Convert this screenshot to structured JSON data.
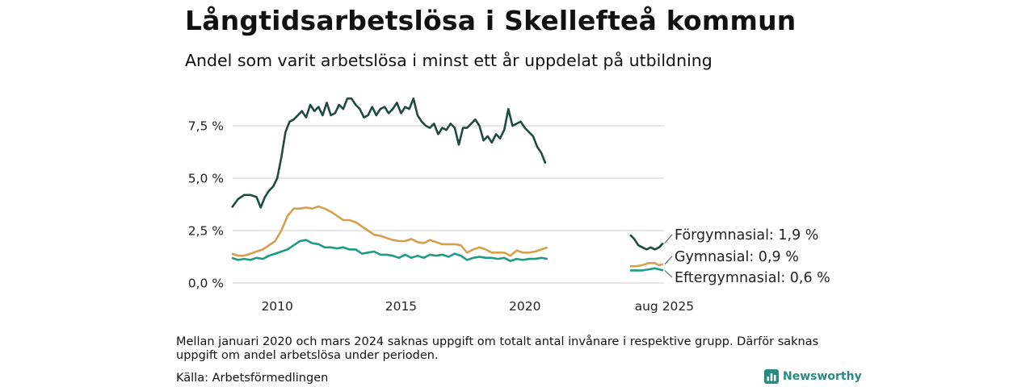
{
  "title": "Långtidsarbetslösa i Skellefteå kommun",
  "subtitle": "Andel som varit arbetslösa i minst ett år uppdelat på utbildning",
  "note": "Mellan januari 2020 och mars 2024 saknas uppgift om totalt antal invånare i respektive grupp. Därför saknas uppgift om andel arbetslösa under perioden.",
  "source": "Källa: Arbetsförmedlingen",
  "brand": "Newsworthy",
  "brand_icon": "bar-chart-icon",
  "colors": {
    "forgymnasial": "#1f4a3f",
    "gymnasial": "#d4a04c",
    "eftergymnasial": "#1d9a85",
    "grid": "#dddddd",
    "brand": "#2a8a7f"
  },
  "chart_data": {
    "type": "line",
    "title": "Långtidsarbetslösa i Skellefteå kommun",
    "subtitle": "Andel som varit arbetslösa i minst ett år uppdelat på utbildning",
    "xlabel": "",
    "ylabel": "",
    "x_ticks": [
      "2010",
      "2015",
      "2020"
    ],
    "x_end_label": "aug 2025",
    "y_ticks": [
      "0,0 %",
      "2,5 %",
      "5,0 %",
      "7,5 %"
    ],
    "ylim": [
      0,
      8.9
    ],
    "grid": true,
    "legend": "right, at series end",
    "series": [
      {
        "name": "Förgymnasial",
        "end_label": "Förgymnasial: 1,9 %",
        "color": "#1f4a3f",
        "points": [
          [
            "2008-03",
            3.6
          ],
          [
            "2008-06",
            4.0
          ],
          [
            "2008-09",
            4.2
          ],
          [
            "2008-12",
            4.2
          ],
          [
            "2009-03",
            4.1
          ],
          [
            "2009-05",
            3.6
          ],
          [
            "2009-07",
            4.1
          ],
          [
            "2009-09",
            4.4
          ],
          [
            "2009-11",
            4.6
          ],
          [
            "2010-01",
            5.0
          ],
          [
            "2010-03",
            6.0
          ],
          [
            "2010-05",
            7.2
          ],
          [
            "2010-07",
            7.7
          ],
          [
            "2010-09",
            7.8
          ],
          [
            "2010-11",
            8.0
          ],
          [
            "2011-01",
            8.2
          ],
          [
            "2011-03",
            7.9
          ],
          [
            "2011-05",
            8.5
          ],
          [
            "2011-07",
            8.2
          ],
          [
            "2011-09",
            8.4
          ],
          [
            "2011-11",
            8.0
          ],
          [
            "2012-01",
            8.6
          ],
          [
            "2012-03",
            8.0
          ],
          [
            "2012-05",
            8.1
          ],
          [
            "2012-07",
            8.5
          ],
          [
            "2012-09",
            8.3
          ],
          [
            "2012-11",
            8.8
          ],
          [
            "2013-01",
            8.8
          ],
          [
            "2013-03",
            8.5
          ],
          [
            "2013-05",
            8.3
          ],
          [
            "2013-07",
            7.9
          ],
          [
            "2013-09",
            8.0
          ],
          [
            "2013-11",
            8.4
          ],
          [
            "2014-01",
            8.0
          ],
          [
            "2014-03",
            8.3
          ],
          [
            "2014-05",
            8.4
          ],
          [
            "2014-07",
            8.1
          ],
          [
            "2014-09",
            8.3
          ],
          [
            "2014-11",
            8.6
          ],
          [
            "2015-01",
            8.1
          ],
          [
            "2015-03",
            8.4
          ],
          [
            "2015-05",
            8.3
          ],
          [
            "2015-07",
            8.8
          ],
          [
            "2015-09",
            8.0
          ],
          [
            "2015-11",
            7.7
          ],
          [
            "2016-01",
            7.5
          ],
          [
            "2016-03",
            7.4
          ],
          [
            "2016-05",
            7.6
          ],
          [
            "2016-07",
            7.1
          ],
          [
            "2016-09",
            7.4
          ],
          [
            "2016-11",
            7.3
          ],
          [
            "2017-01",
            7.6
          ],
          [
            "2017-03",
            7.4
          ],
          [
            "2017-05",
            6.6
          ],
          [
            "2017-07",
            7.4
          ],
          [
            "2017-09",
            7.4
          ],
          [
            "2017-11",
            7.6
          ],
          [
            "2018-01",
            7.8
          ],
          [
            "2018-03",
            7.5
          ],
          [
            "2018-05",
            6.8
          ],
          [
            "2018-07",
            7.0
          ],
          [
            "2018-09",
            6.7
          ],
          [
            "2018-11",
            7.1
          ],
          [
            "2019-01",
            6.9
          ],
          [
            "2019-03",
            7.3
          ],
          [
            "2019-05",
            8.3
          ],
          [
            "2019-07",
            7.5
          ],
          [
            "2019-09",
            7.6
          ],
          [
            "2019-11",
            7.7
          ],
          [
            "2020-01",
            7.4
          ],
          [
            "2020-03",
            7.2
          ],
          [
            "2020-05",
            7.0
          ],
          [
            "2020-07",
            6.5
          ],
          [
            "2020-09",
            6.2
          ],
          [
            "2020-11",
            5.7
          ]
        ],
        "points_after_gap": [
          [
            "2024-04",
            2.3
          ],
          [
            "2024-06",
            2.1
          ],
          [
            "2024-08",
            1.8
          ],
          [
            "2024-10",
            1.7
          ],
          [
            "2024-12",
            1.6
          ],
          [
            "2025-02",
            1.7
          ],
          [
            "2025-04",
            1.6
          ],
          [
            "2025-06",
            1.7
          ],
          [
            "2025-08",
            1.9
          ]
        ]
      },
      {
        "name": "Gymnasial",
        "end_label": "Gymnasial: 0,9 %",
        "color": "#d4a04c",
        "points": [
          [
            "2008-03",
            1.4
          ],
          [
            "2008-06",
            1.3
          ],
          [
            "2008-09",
            1.3
          ],
          [
            "2008-12",
            1.4
          ],
          [
            "2009-03",
            1.5
          ],
          [
            "2009-06",
            1.6
          ],
          [
            "2009-09",
            1.8
          ],
          [
            "2009-12",
            2.0
          ],
          [
            "2010-03",
            2.5
          ],
          [
            "2010-06",
            3.2
          ],
          [
            "2010-09",
            3.55
          ],
          [
            "2010-12",
            3.55
          ],
          [
            "2011-03",
            3.6
          ],
          [
            "2011-06",
            3.55
          ],
          [
            "2011-09",
            3.65
          ],
          [
            "2011-12",
            3.55
          ],
          [
            "2012-03",
            3.4
          ],
          [
            "2012-06",
            3.2
          ],
          [
            "2012-09",
            3.0
          ],
          [
            "2012-12",
            3.0
          ],
          [
            "2013-03",
            2.9
          ],
          [
            "2013-06",
            2.7
          ],
          [
            "2013-09",
            2.5
          ],
          [
            "2013-12",
            2.3
          ],
          [
            "2014-03",
            2.25
          ],
          [
            "2014-06",
            2.15
          ],
          [
            "2014-09",
            2.05
          ],
          [
            "2014-12",
            2.0
          ],
          [
            "2015-03",
            2.0
          ],
          [
            "2015-06",
            2.1
          ],
          [
            "2015-09",
            1.95
          ],
          [
            "2015-12",
            1.9
          ],
          [
            "2016-03",
            2.05
          ],
          [
            "2016-06",
            1.95
          ],
          [
            "2016-09",
            1.85
          ],
          [
            "2016-12",
            1.85
          ],
          [
            "2017-03",
            1.85
          ],
          [
            "2017-06",
            1.8
          ],
          [
            "2017-09",
            1.45
          ],
          [
            "2017-12",
            1.6
          ],
          [
            "2018-03",
            1.7
          ],
          [
            "2018-06",
            1.6
          ],
          [
            "2018-09",
            1.45
          ],
          [
            "2018-12",
            1.45
          ],
          [
            "2019-03",
            1.45
          ],
          [
            "2019-06",
            1.3
          ],
          [
            "2019-09",
            1.55
          ],
          [
            "2019-12",
            1.45
          ],
          [
            "2020-03",
            1.45
          ],
          [
            "2020-06",
            1.5
          ],
          [
            "2020-09",
            1.6
          ],
          [
            "2020-12",
            1.7
          ]
        ],
        "points_after_gap": [
          [
            "2024-04",
            0.8
          ],
          [
            "2024-07",
            0.8
          ],
          [
            "2024-10",
            0.85
          ],
          [
            "2025-01",
            0.95
          ],
          [
            "2025-04",
            0.95
          ],
          [
            "2025-06",
            0.85
          ],
          [
            "2025-08",
            0.9
          ]
        ]
      },
      {
        "name": "Eftergymnasial",
        "end_label": "Eftergymnasial: 0,6 %",
        "color": "#1d9a85",
        "points": [
          [
            "2008-03",
            1.2
          ],
          [
            "2008-06",
            1.1
          ],
          [
            "2008-09",
            1.15
          ],
          [
            "2008-12",
            1.1
          ],
          [
            "2009-03",
            1.2
          ],
          [
            "2009-06",
            1.15
          ],
          [
            "2009-09",
            1.3
          ],
          [
            "2009-12",
            1.4
          ],
          [
            "2010-03",
            1.5
          ],
          [
            "2010-06",
            1.6
          ],
          [
            "2010-09",
            1.8
          ],
          [
            "2010-12",
            2.0
          ],
          [
            "2011-03",
            2.05
          ],
          [
            "2011-06",
            1.9
          ],
          [
            "2011-09",
            1.85
          ],
          [
            "2011-12",
            1.7
          ],
          [
            "2012-03",
            1.7
          ],
          [
            "2012-06",
            1.65
          ],
          [
            "2012-09",
            1.7
          ],
          [
            "2012-12",
            1.6
          ],
          [
            "2013-03",
            1.6
          ],
          [
            "2013-06",
            1.4
          ],
          [
            "2013-09",
            1.45
          ],
          [
            "2013-12",
            1.5
          ],
          [
            "2014-03",
            1.35
          ],
          [
            "2014-06",
            1.35
          ],
          [
            "2014-09",
            1.3
          ],
          [
            "2014-12",
            1.2
          ],
          [
            "2015-03",
            1.35
          ],
          [
            "2015-06",
            1.2
          ],
          [
            "2015-09",
            1.3
          ],
          [
            "2015-12",
            1.2
          ],
          [
            "2016-03",
            1.35
          ],
          [
            "2016-06",
            1.3
          ],
          [
            "2016-09",
            1.35
          ],
          [
            "2016-12",
            1.25
          ],
          [
            "2017-03",
            1.4
          ],
          [
            "2017-06",
            1.3
          ],
          [
            "2017-09",
            1.1
          ],
          [
            "2017-12",
            1.2
          ],
          [
            "2018-03",
            1.25
          ],
          [
            "2018-06",
            1.2
          ],
          [
            "2018-09",
            1.2
          ],
          [
            "2018-12",
            1.15
          ],
          [
            "2019-03",
            1.2
          ],
          [
            "2019-06",
            1.05
          ],
          [
            "2019-09",
            1.15
          ],
          [
            "2019-12",
            1.1
          ],
          [
            "2020-03",
            1.15
          ],
          [
            "2020-06",
            1.15
          ],
          [
            "2020-09",
            1.2
          ],
          [
            "2020-12",
            1.15
          ]
        ],
        "points_after_gap": [
          [
            "2024-04",
            0.6
          ],
          [
            "2024-07",
            0.6
          ],
          [
            "2024-10",
            0.6
          ],
          [
            "2025-01",
            0.65
          ],
          [
            "2025-04",
            0.7
          ],
          [
            "2025-06",
            0.65
          ],
          [
            "2025-08",
            0.6
          ]
        ]
      }
    ]
  }
}
